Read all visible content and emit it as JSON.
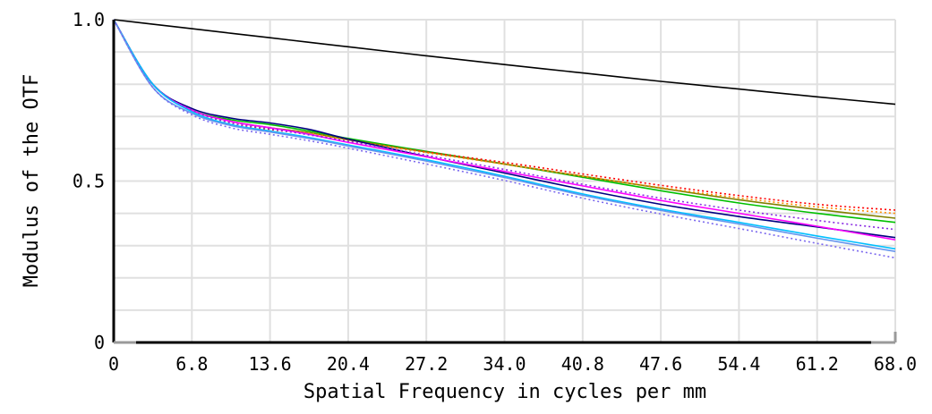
{
  "chart_data": {
    "type": "line",
    "title": "",
    "xlabel": "Spatial Frequency in cycles per mm",
    "ylabel": "Modulus of the OTF",
    "xlim": [
      0,
      68.0
    ],
    "ylim": [
      0,
      1.0
    ],
    "x_ticks": [
      "0",
      "6.8",
      "13.6",
      "20.4",
      "27.2",
      "34.0",
      "40.8",
      "47.6",
      "54.4",
      "61.2",
      "68.0"
    ],
    "y_ticks": [
      "0",
      "0.5",
      "1.0"
    ],
    "grid": true,
    "legend": "none",
    "x": [
      0,
      3.4,
      6.8,
      10.2,
      13.6,
      17.0,
      20.4,
      27.2,
      34.0,
      40.8,
      47.6,
      54.4,
      61.2,
      68.0
    ],
    "series": [
      {
        "color": "#000000",
        "style": "solid",
        "values": [
          1.0,
          0.986,
          0.972,
          0.958,
          0.944,
          0.93,
          0.916,
          0.888,
          0.861,
          0.835,
          0.809,
          0.785,
          0.761,
          0.738
        ]
      },
      {
        "color": "#00c000",
        "style": "solid",
        "values": [
          1.0,
          0.8,
          0.72,
          0.69,
          0.675,
          0.655,
          0.632,
          0.592,
          0.553,
          0.512,
          0.47,
          0.432,
          0.4,
          0.372
        ]
      },
      {
        "color": "#808000",
        "style": "solid",
        "values": [
          1.0,
          0.8,
          0.72,
          0.685,
          0.665,
          0.65,
          0.628,
          0.59,
          0.553,
          0.515,
          0.478,
          0.442,
          0.412,
          0.385
        ]
      },
      {
        "color": "#ff0000",
        "style": "dotted",
        "values": [
          1.0,
          0.8,
          0.72,
          0.68,
          0.66,
          0.645,
          0.625,
          0.59,
          0.558,
          0.522,
          0.487,
          0.455,
          0.428,
          0.41
        ]
      },
      {
        "color": "#ff8c00",
        "style": "dotted",
        "values": [
          1.0,
          0.8,
          0.72,
          0.685,
          0.665,
          0.648,
          0.627,
          0.588,
          0.552,
          0.515,
          0.48,
          0.448,
          0.42,
          0.4
        ]
      },
      {
        "color": "#000080",
        "style": "solid",
        "values": [
          1.0,
          0.8,
          0.725,
          0.695,
          0.68,
          0.66,
          0.63,
          0.576,
          0.525,
          0.474,
          0.428,
          0.39,
          0.358,
          0.325
        ]
      },
      {
        "color": "#ff00ff",
        "style": "solid",
        "values": [
          1.0,
          0.8,
          0.72,
          0.685,
          0.665,
          0.645,
          0.62,
          0.575,
          0.53,
          0.485,
          0.44,
          0.4,
          0.36,
          0.318
        ]
      },
      {
        "color": "#8a2be2",
        "style": "dotted",
        "values": [
          1.0,
          0.8,
          0.72,
          0.68,
          0.662,
          0.643,
          0.623,
          0.58,
          0.536,
          0.49,
          0.447,
          0.41,
          0.378,
          0.35
        ]
      },
      {
        "color": "#00bfff",
        "style": "solid",
        "values": [
          1.0,
          0.8,
          0.715,
          0.675,
          0.655,
          0.635,
          0.612,
          0.566,
          0.515,
          0.46,
          0.413,
          0.372,
          0.33,
          0.29
        ]
      },
      {
        "color": "#6495ed",
        "style": "solid",
        "values": [
          1.0,
          0.79,
          0.71,
          0.672,
          0.652,
          0.632,
          0.609,
          0.562,
          0.511,
          0.456,
          0.409,
          0.367,
          0.323,
          0.282
        ]
      },
      {
        "color": "#7b68ee",
        "style": "dotted",
        "values": [
          1.0,
          0.79,
          0.705,
          0.665,
          0.645,
          0.625,
          0.602,
          0.553,
          0.502,
          0.447,
          0.398,
          0.353,
          0.307,
          0.262
        ]
      }
    ]
  }
}
